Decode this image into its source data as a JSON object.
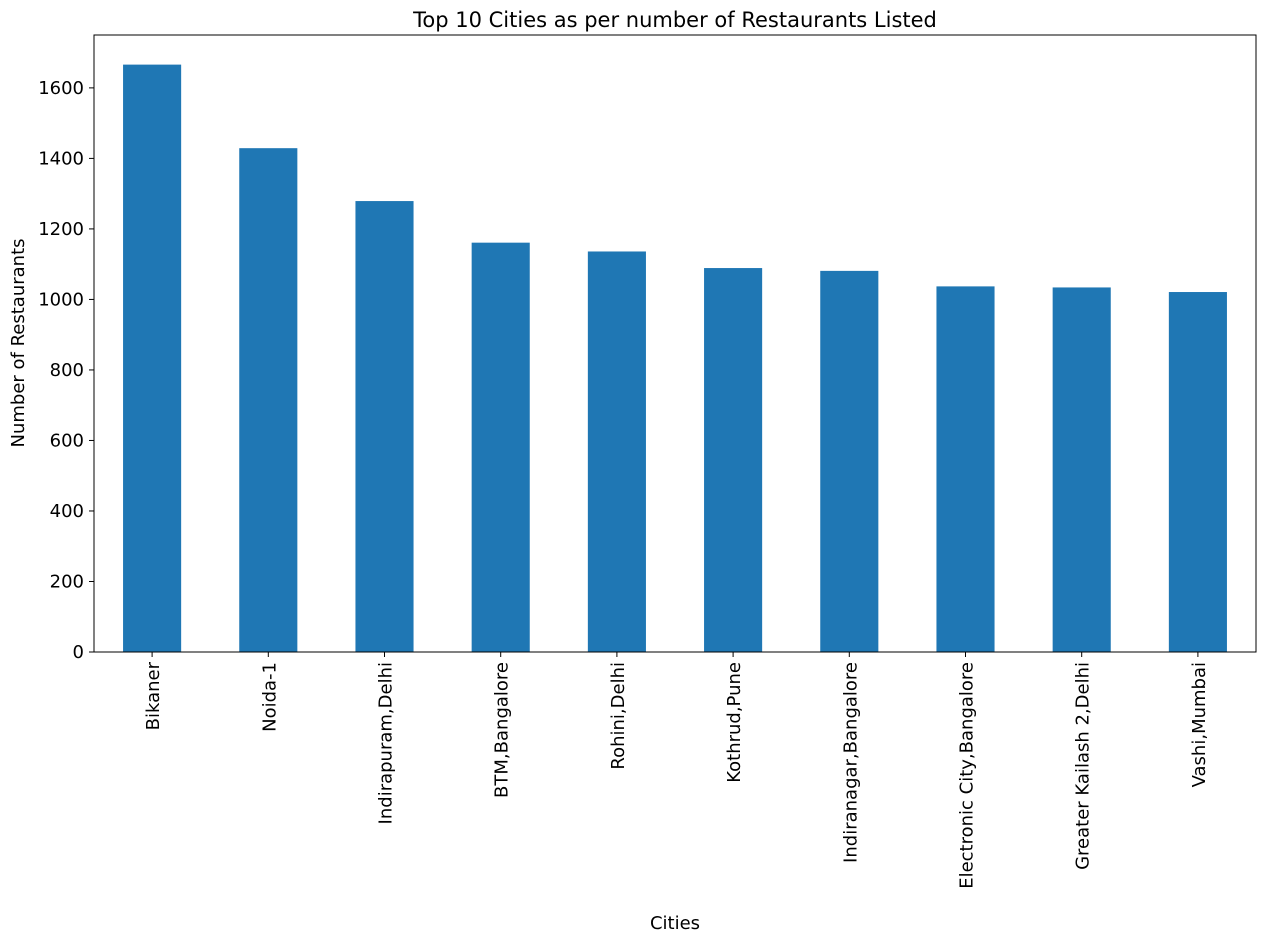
{
  "chart_data": {
    "type": "bar",
    "title": "Top 10 Cities as per number of Restaurants Listed",
    "xlabel": "Cities",
    "ylabel": "Number of Restaurants",
    "categories": [
      "Bikaner",
      "Noida-1",
      "Indirapuram,Delhi",
      "BTM,Bangalore",
      "Rohini,Delhi",
      "Kothrud,Pune",
      "Indiranagar,Bangalore",
      "Electronic City,Bangalore",
      "Greater Kailash 2,Delhi",
      "Vashi,Mumbai"
    ],
    "values": [
      1666,
      1429,
      1279,
      1161,
      1136,
      1089,
      1081,
      1037,
      1034,
      1021
    ],
    "ylim": [
      0,
      1750
    ],
    "yticks": [
      0,
      200,
      400,
      600,
      800,
      1000,
      1200,
      1400,
      1600
    ],
    "grid": false,
    "bar_color": "#1f77b4"
  }
}
